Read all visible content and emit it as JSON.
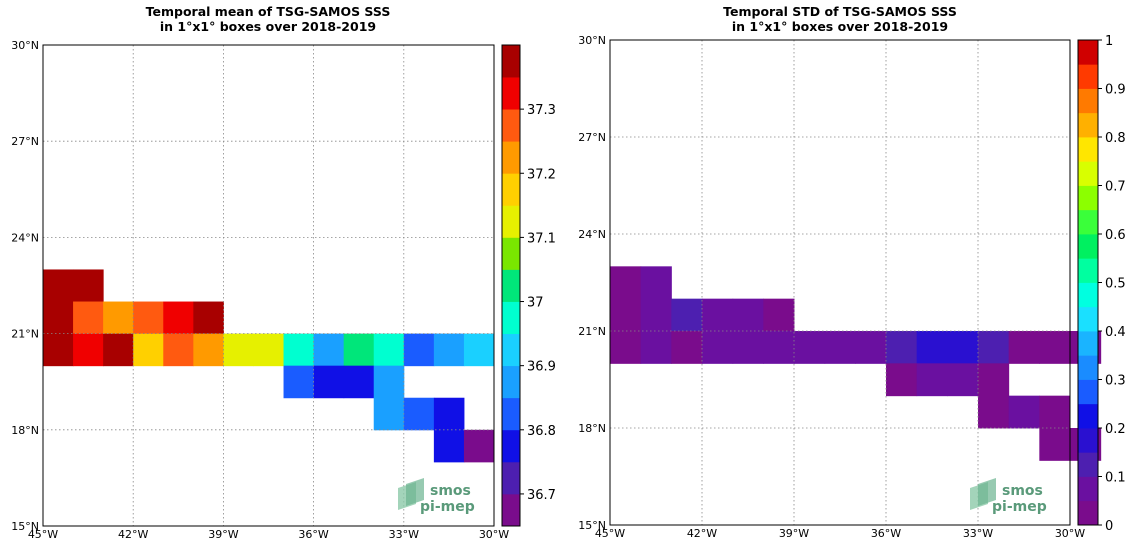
{
  "chart_data": [
    {
      "type": "heatmap",
      "title_line1": "Temporal mean of TSG-SAMOS SSS",
      "title_line2": "in 1°x1° boxes over 2018-2019",
      "x_range": [
        -45,
        -30
      ],
      "y_range": [
        15,
        30
      ],
      "x_ticks": [
        -45,
        -42,
        -39,
        -36,
        -33,
        -30
      ],
      "y_ticks": [
        15,
        18,
        21,
        24,
        27,
        30
      ],
      "x_tick_labels": [
        "45°W",
        "42°W",
        "39°W",
        "36°W",
        "33°W",
        "30°W"
      ],
      "y_tick_labels": [
        "15°N",
        "18°N",
        "21°N",
        "24°N",
        "27°N",
        "30°N"
      ],
      "grid": true,
      "colorbar": {
        "range": [
          36.65,
          37.4
        ],
        "levels": 15,
        "ticks": [
          36.7,
          36.8,
          36.9,
          37.0,
          37.1,
          37.2,
          37.3
        ],
        "tick_labels": [
          "36.7",
          "36.8",
          "36.9",
          "37",
          "37.1",
          "37.2",
          "37.3"
        ]
      },
      "cells": [
        {
          "lon": -45,
          "lat": 22,
          "value": 37.38
        },
        {
          "lon": -44,
          "lat": 22,
          "value": 37.38
        },
        {
          "lon": -45,
          "lat": 21,
          "value": 37.38
        },
        {
          "lon": -44,
          "lat": 21,
          "value": 37.27
        },
        {
          "lon": -43,
          "lat": 21,
          "value": 37.23
        },
        {
          "lon": -42,
          "lat": 21,
          "value": 37.27
        },
        {
          "lon": -41,
          "lat": 21,
          "value": 37.32
        },
        {
          "lon": -40,
          "lat": 21,
          "value": 37.38
        },
        {
          "lon": -45,
          "lat": 20,
          "value": 37.38
        },
        {
          "lon": -44,
          "lat": 20,
          "value": 37.32
        },
        {
          "lon": -43,
          "lat": 20,
          "value": 37.38
        },
        {
          "lon": -42,
          "lat": 20,
          "value": 37.18
        },
        {
          "lon": -41,
          "lat": 20,
          "value": 37.27
        },
        {
          "lon": -40,
          "lat": 20,
          "value": 37.23
        },
        {
          "lon": -39,
          "lat": 20,
          "value": 37.12
        },
        {
          "lon": -38,
          "lat": 20,
          "value": 37.12
        },
        {
          "lon": -37,
          "lat": 20,
          "value": 36.98
        },
        {
          "lon": -36,
          "lat": 20,
          "value": 36.88
        },
        {
          "lon": -35,
          "lat": 20,
          "value": 37.03
        },
        {
          "lon": -34,
          "lat": 20,
          "value": 36.98
        },
        {
          "lon": -33,
          "lat": 20,
          "value": 36.83
        },
        {
          "lon": -32,
          "lat": 20,
          "value": 36.88
        },
        {
          "lon": -31,
          "lat": 20,
          "value": 36.93
        },
        {
          "lon": -37,
          "lat": 19,
          "value": 36.83
        },
        {
          "lon": -36,
          "lat": 19,
          "value": 36.78
        },
        {
          "lon": -35,
          "lat": 19,
          "value": 36.78
        },
        {
          "lon": -34,
          "lat": 19,
          "value": 36.88
        },
        {
          "lon": -34,
          "lat": 18,
          "value": 36.88
        },
        {
          "lon": -33,
          "lat": 18,
          "value": 36.83
        },
        {
          "lon": -32,
          "lat": 18,
          "value": 36.78
        },
        {
          "lon": -32,
          "lat": 17,
          "value": 36.78
        },
        {
          "lon": -31,
          "lat": 17,
          "value": 36.68
        }
      ]
    },
    {
      "type": "heatmap",
      "title_line1": "Temporal STD of TSG-SAMOS SSS",
      "title_line2": "in 1°x1° boxes over 2018-2019",
      "x_range": [
        -45,
        -30
      ],
      "y_range": [
        15,
        30
      ],
      "x_ticks": [
        -45,
        -42,
        -39,
        -36,
        -33,
        -30
      ],
      "y_ticks": [
        15,
        18,
        21,
        24,
        27,
        30
      ],
      "x_tick_labels": [
        "45°W",
        "42°W",
        "39°W",
        "36°W",
        "33°W",
        "30°W"
      ],
      "y_tick_labels": [
        "15°N",
        "18°N",
        "21°N",
        "24°N",
        "27°N",
        "30°N"
      ],
      "grid": true,
      "colorbar": {
        "range": [
          0,
          1
        ],
        "levels": 20,
        "ticks": [
          0,
          0.1,
          0.2,
          0.3,
          0.4,
          0.5,
          0.6,
          0.7,
          0.8,
          0.9,
          1
        ],
        "tick_labels": [
          "0",
          "0.1",
          "0.2",
          "0.3",
          "0.4",
          "0.5",
          "0.6",
          "0.7",
          "0.8",
          "0.9",
          "1"
        ]
      },
      "cells": [
        {
          "lon": -45,
          "lat": 22,
          "value": 0.03
        },
        {
          "lon": -44,
          "lat": 22,
          "value": 0.08
        },
        {
          "lon": -45,
          "lat": 21,
          "value": 0.03
        },
        {
          "lon": -44,
          "lat": 21,
          "value": 0.08
        },
        {
          "lon": -43,
          "lat": 21,
          "value": 0.13
        },
        {
          "lon": -42,
          "lat": 21,
          "value": 0.08
        },
        {
          "lon": -41,
          "lat": 21,
          "value": 0.08
        },
        {
          "lon": -40,
          "lat": 21,
          "value": 0.03
        },
        {
          "lon": -45,
          "lat": 20,
          "value": 0.03
        },
        {
          "lon": -44,
          "lat": 20,
          "value": 0.08
        },
        {
          "lon": -43,
          "lat": 20,
          "value": 0.03
        },
        {
          "lon": -42,
          "lat": 20,
          "value": 0.08
        },
        {
          "lon": -41,
          "lat": 20,
          "value": 0.08
        },
        {
          "lon": -40,
          "lat": 20,
          "value": 0.08
        },
        {
          "lon": -39,
          "lat": 20,
          "value": 0.08
        },
        {
          "lon": -38,
          "lat": 20,
          "value": 0.08
        },
        {
          "lon": -37,
          "lat": 20,
          "value": 0.08
        },
        {
          "lon": -36,
          "lat": 20,
          "value": 0.13
        },
        {
          "lon": -35,
          "lat": 20,
          "value": 0.18
        },
        {
          "lon": -34,
          "lat": 20,
          "value": 0.18
        },
        {
          "lon": -33,
          "lat": 20,
          "value": 0.13
        },
        {
          "lon": -32,
          "lat": 20,
          "value": 0.03
        },
        {
          "lon": -31,
          "lat": 20,
          "value": 0.03
        },
        {
          "lon": -30,
          "lat": 20,
          "value": 0.03
        },
        {
          "lon": -36,
          "lat": 19,
          "value": 0.03
        },
        {
          "lon": -35,
          "lat": 19,
          "value": 0.08
        },
        {
          "lon": -34,
          "lat": 19,
          "value": 0.08
        },
        {
          "lon": -33,
          "lat": 19,
          "value": 0.03
        },
        {
          "lon": -33,
          "lat": 18,
          "value": 0.03
        },
        {
          "lon": -32,
          "lat": 18,
          "value": 0.08
        },
        {
          "lon": -31,
          "lat": 18,
          "value": 0.03
        },
        {
          "lon": -31,
          "lat": 17,
          "value": 0.03
        },
        {
          "lon": -30,
          "lat": 17,
          "value": 0.03
        }
      ]
    }
  ],
  "logo": {
    "line1": "smos",
    "line2": "pi-mep"
  }
}
